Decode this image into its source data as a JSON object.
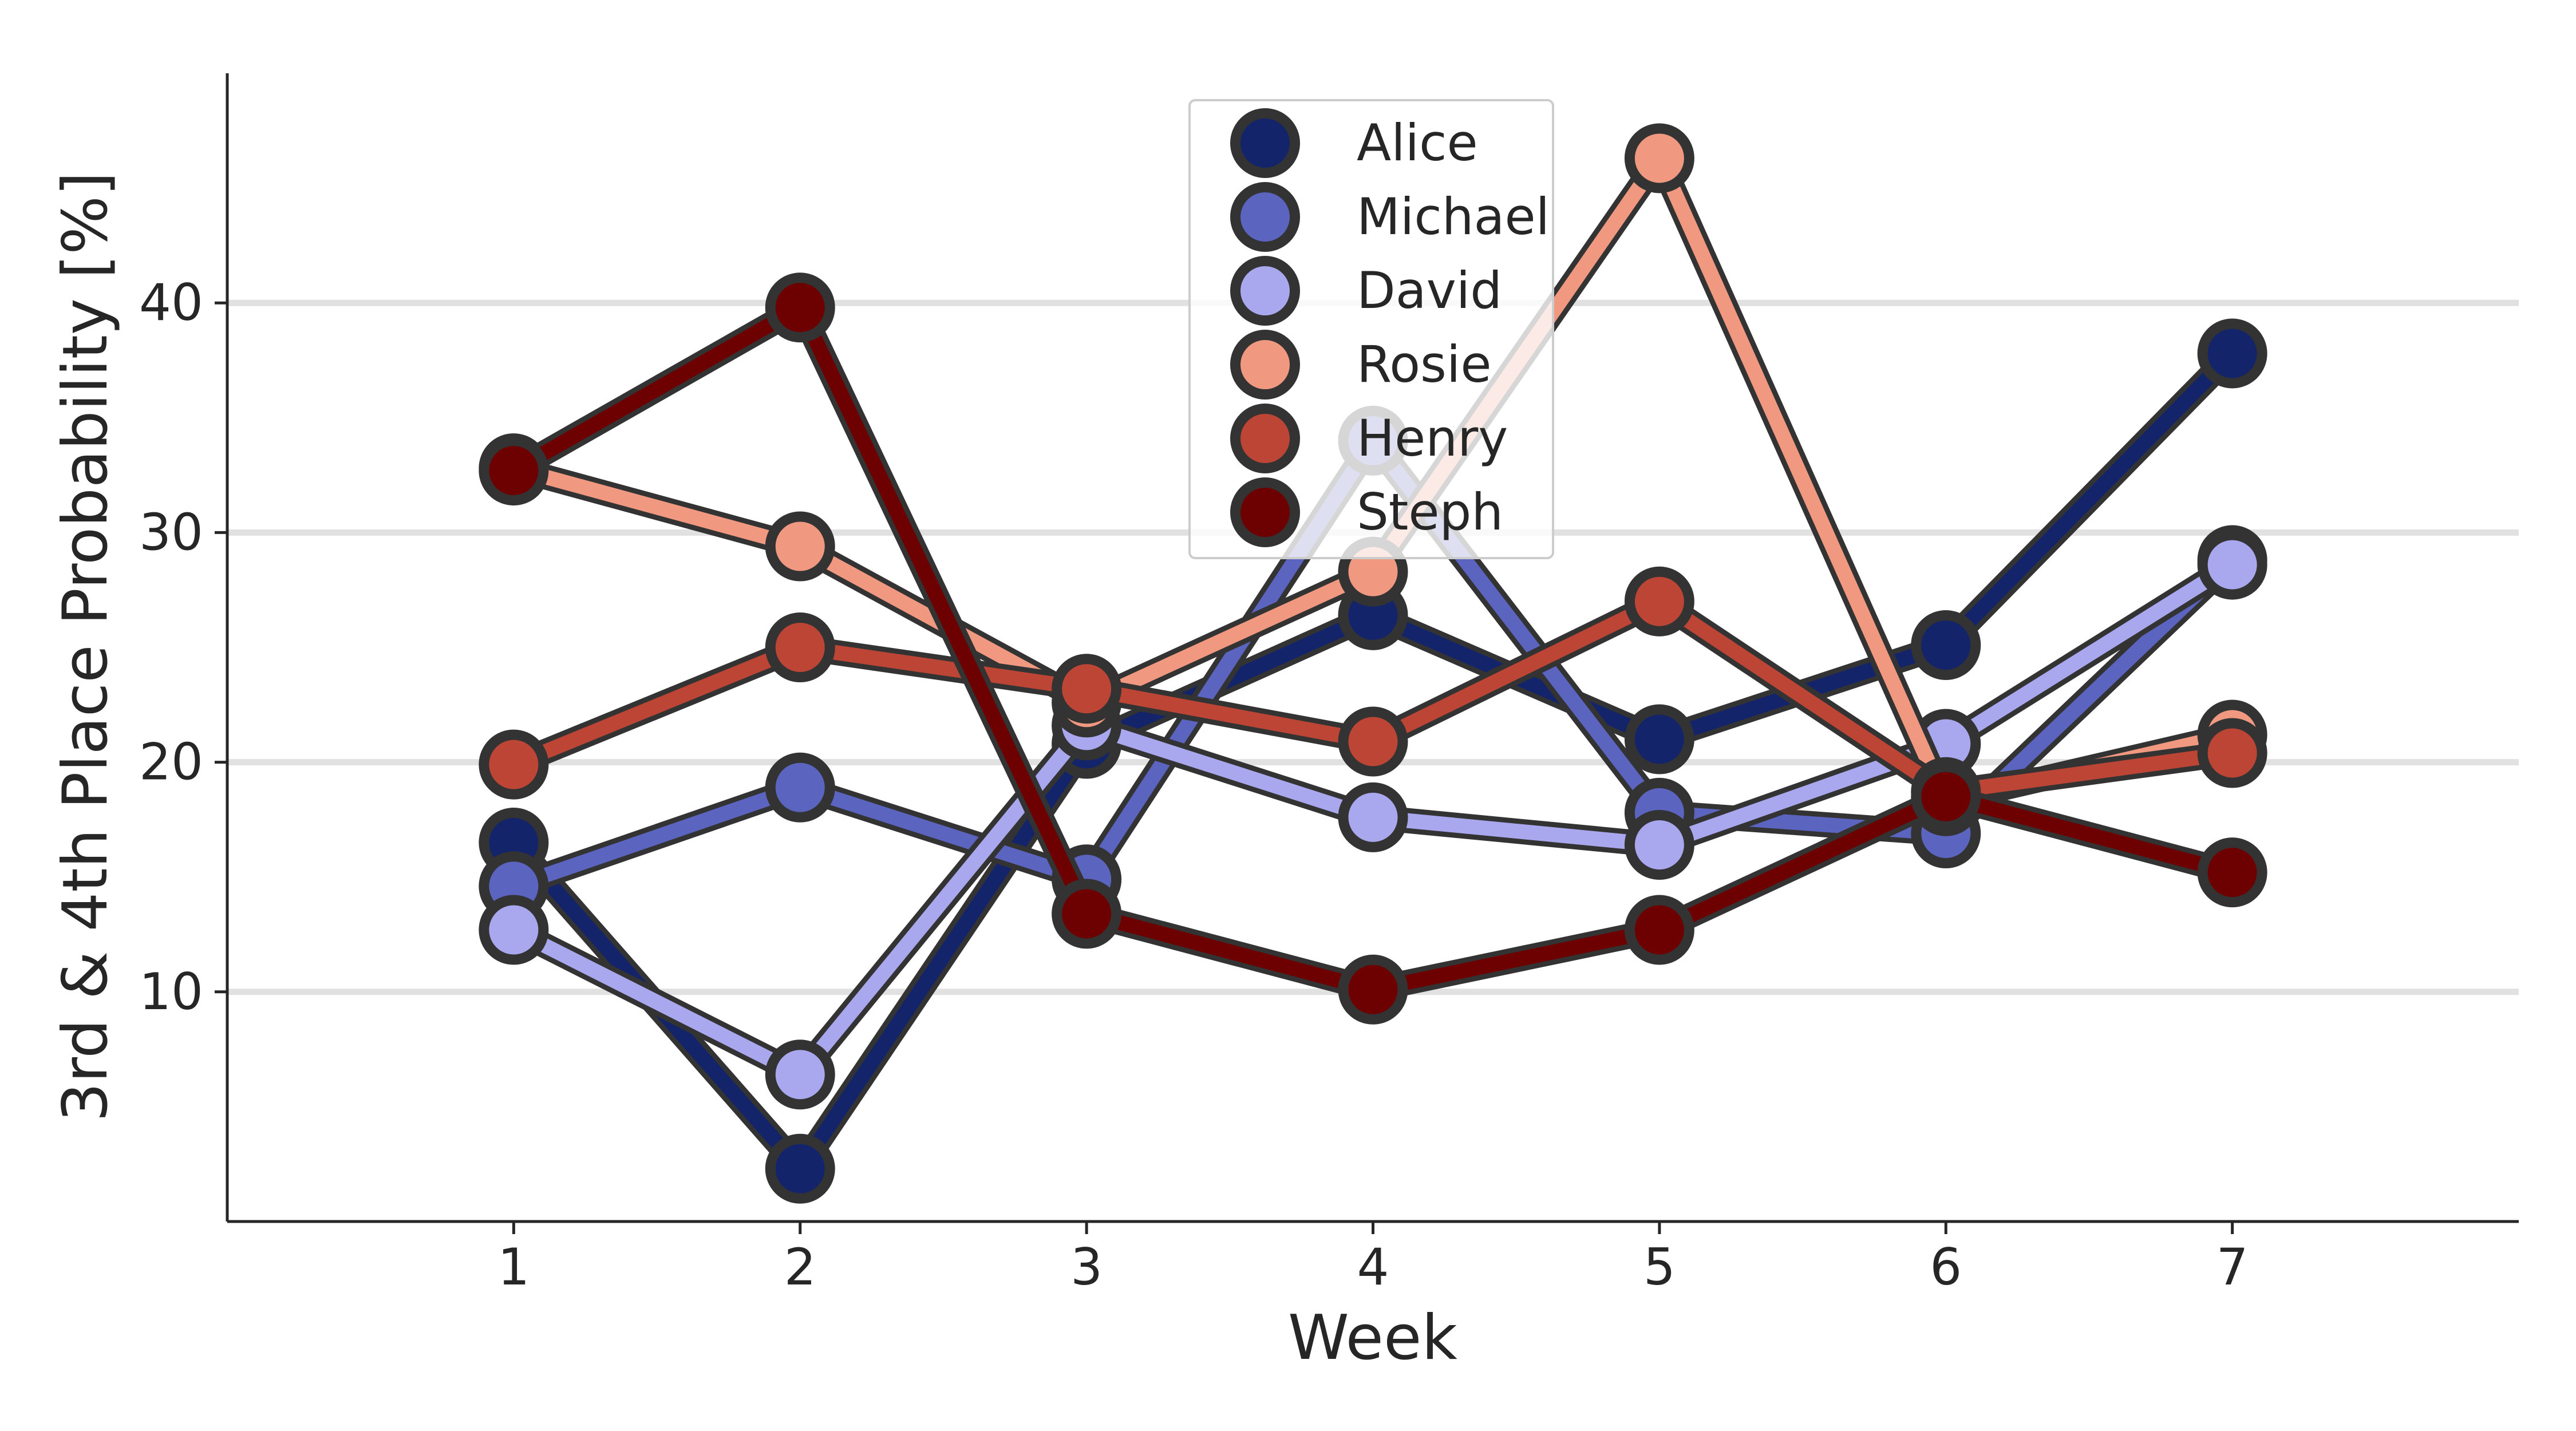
{
  "chart_data": {
    "type": "line",
    "xlabel": "Week",
    "ylabel": "3rd & 4th Place Probability [%]",
    "x": [
      1,
      2,
      3,
      4,
      5,
      6,
      7
    ],
    "xlim": [
      0,
      8
    ],
    "ylim": [
      0,
      50
    ],
    "yticks": [
      10,
      20,
      30,
      40
    ],
    "grid": "horizontal",
    "legend_position": "top-center",
    "series": [
      {
        "name": "Alice",
        "color": "#14246b",
        "values": [
          16.5,
          2.3,
          20.8,
          26.4,
          21.0,
          25.1,
          37.8
        ]
      },
      {
        "name": "Michael",
        "color": "#5b64bf",
        "values": [
          14.6,
          18.9,
          14.9,
          34.0,
          17.8,
          16.9,
          28.8
        ]
      },
      {
        "name": "David",
        "color": "#a9a7ee",
        "values": [
          12.7,
          6.4,
          21.6,
          17.6,
          16.4,
          20.8,
          28.6
        ]
      },
      {
        "name": "Rosie",
        "color": "#f19880",
        "values": [
          32.8,
          29.4,
          22.6,
          28.3,
          46.3,
          18.3,
          21.2
        ]
      },
      {
        "name": "Henry",
        "color": "#bc4535",
        "values": [
          19.9,
          25.0,
          23.2,
          20.9,
          27.0,
          18.7,
          20.4
        ]
      },
      {
        "name": "Steph",
        "color": "#6d0000",
        "values": [
          32.7,
          39.8,
          13.4,
          10.1,
          12.7,
          18.5,
          15.2
        ]
      }
    ]
  }
}
